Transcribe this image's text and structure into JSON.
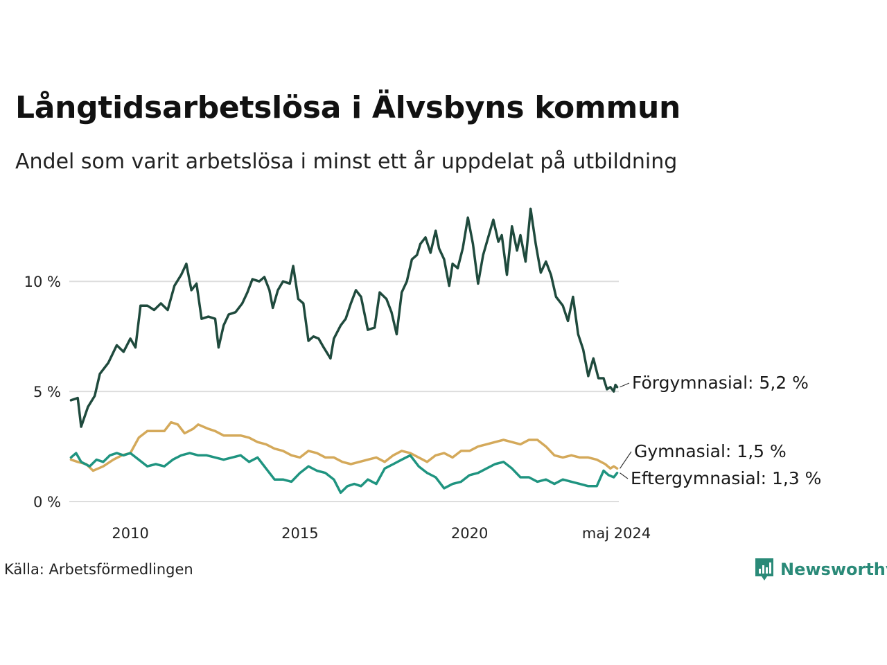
{
  "header": {
    "title": "Långtidsarbetslösa i Älvsbyns kommun",
    "subtitle": "Andel som varit arbetslösa i minst ett år uppdelat på utbildning"
  },
  "footer": {
    "source": "Källa: Arbetsförmedlingen",
    "brand": "Newsworthy"
  },
  "colors": {
    "forgymnasial": "#1f4a3d",
    "gymnasial": "#d4a95a",
    "eftergymnasial": "#1f9480",
    "grid": "#dddddd",
    "brand": "#2a8a78"
  },
  "chart_data": {
    "type": "line",
    "title": "Långtidsarbetslösa i Älvsbyns kommun",
    "subtitle": "Andel som varit arbetslösa i minst ett år uppdelat på utbildning",
    "xlabel": "",
    "ylabel": "",
    "xlim": [
      2008.2,
      2024.4
    ],
    "ylim": [
      0,
      13.5
    ],
    "y_ticks": [
      0,
      5,
      10
    ],
    "y_tick_labels": [
      "0 %",
      "5 %",
      "10 %"
    ],
    "x_ticks": [
      2010,
      2015,
      2020,
      2024.33
    ],
    "x_tick_labels": [
      "2010",
      "2015",
      "2020",
      "maj 2024"
    ],
    "grid": "horizontal",
    "series": [
      {
        "name": "Förgymnasial",
        "label": "Förgymnasial: 5,2 %",
        "color": "#1f4a3d",
        "points": [
          [
            2008.25,
            4.6
          ],
          [
            2008.45,
            4.7
          ],
          [
            2008.55,
            3.4
          ],
          [
            2008.75,
            4.3
          ],
          [
            2008.95,
            4.8
          ],
          [
            2009.1,
            5.8
          ],
          [
            2009.35,
            6.3
          ],
          [
            2009.6,
            7.1
          ],
          [
            2009.8,
            6.8
          ],
          [
            2010.0,
            7.4
          ],
          [
            2010.15,
            7.0
          ],
          [
            2010.3,
            8.9
          ],
          [
            2010.5,
            8.9
          ],
          [
            2010.7,
            8.7
          ],
          [
            2010.9,
            9.0
          ],
          [
            2011.1,
            8.7
          ],
          [
            2011.3,
            9.8
          ],
          [
            2011.5,
            10.3
          ],
          [
            2011.65,
            10.8
          ],
          [
            2011.8,
            9.6
          ],
          [
            2011.95,
            9.9
          ],
          [
            2012.1,
            8.3
          ],
          [
            2012.3,
            8.4
          ],
          [
            2012.5,
            8.3
          ],
          [
            2012.6,
            7.0
          ],
          [
            2012.75,
            8.0
          ],
          [
            2012.9,
            8.5
          ],
          [
            2013.1,
            8.6
          ],
          [
            2013.3,
            9.0
          ],
          [
            2013.45,
            9.5
          ],
          [
            2013.6,
            10.1
          ],
          [
            2013.8,
            10.0
          ],
          [
            2013.95,
            10.2
          ],
          [
            2014.1,
            9.6
          ],
          [
            2014.2,
            8.8
          ],
          [
            2014.35,
            9.6
          ],
          [
            2014.5,
            10.0
          ],
          [
            2014.7,
            9.9
          ],
          [
            2014.8,
            10.7
          ],
          [
            2014.95,
            9.2
          ],
          [
            2015.1,
            9.0
          ],
          [
            2015.25,
            7.3
          ],
          [
            2015.4,
            7.5
          ],
          [
            2015.55,
            7.4
          ],
          [
            2015.7,
            7.0
          ],
          [
            2015.9,
            6.5
          ],
          [
            2016.0,
            7.4
          ],
          [
            2016.2,
            8.0
          ],
          [
            2016.35,
            8.3
          ],
          [
            2016.5,
            9.0
          ],
          [
            2016.65,
            9.6
          ],
          [
            2016.8,
            9.3
          ],
          [
            2017.0,
            7.8
          ],
          [
            2017.2,
            7.9
          ],
          [
            2017.35,
            9.5
          ],
          [
            2017.55,
            9.2
          ],
          [
            2017.7,
            8.6
          ],
          [
            2017.85,
            7.6
          ],
          [
            2018.0,
            9.5
          ],
          [
            2018.15,
            10.0
          ],
          [
            2018.3,
            11.0
          ],
          [
            2018.45,
            11.2
          ],
          [
            2018.55,
            11.7
          ],
          [
            2018.7,
            12.0
          ],
          [
            2018.85,
            11.3
          ],
          [
            2019.0,
            12.3
          ],
          [
            2019.1,
            11.5
          ],
          [
            2019.25,
            11.0
          ],
          [
            2019.4,
            9.8
          ],
          [
            2019.5,
            10.8
          ],
          [
            2019.65,
            10.6
          ],
          [
            2019.8,
            11.5
          ],
          [
            2019.95,
            12.9
          ],
          [
            2020.1,
            11.7
          ],
          [
            2020.25,
            9.9
          ],
          [
            2020.4,
            11.2
          ],
          [
            2020.55,
            12.0
          ],
          [
            2020.7,
            12.8
          ],
          [
            2020.85,
            11.8
          ],
          [
            2020.95,
            12.1
          ],
          [
            2021.1,
            10.3
          ],
          [
            2021.25,
            12.5
          ],
          [
            2021.4,
            11.4
          ],
          [
            2021.5,
            12.1
          ],
          [
            2021.65,
            10.9
          ],
          [
            2021.8,
            13.3
          ],
          [
            2021.95,
            11.7
          ],
          [
            2022.1,
            10.4
          ],
          [
            2022.25,
            10.9
          ],
          [
            2022.4,
            10.3
          ],
          [
            2022.55,
            9.3
          ],
          [
            2022.75,
            8.9
          ],
          [
            2022.9,
            8.2
          ],
          [
            2023.05,
            9.3
          ],
          [
            2023.2,
            7.6
          ],
          [
            2023.35,
            6.9
          ],
          [
            2023.5,
            5.7
          ],
          [
            2023.65,
            6.5
          ],
          [
            2023.8,
            5.6
          ],
          [
            2023.95,
            5.6
          ],
          [
            2024.05,
            5.1
          ],
          [
            2024.15,
            5.2
          ],
          [
            2024.25,
            5.0
          ],
          [
            2024.3,
            5.3
          ],
          [
            2024.35,
            5.2
          ]
        ]
      },
      {
        "name": "Gymnasial",
        "label": "Gymnasial: 1,5 %",
        "color": "#d4a95a",
        "points": [
          [
            2008.25,
            1.9
          ],
          [
            2008.45,
            1.8
          ],
          [
            2008.7,
            1.7
          ],
          [
            2008.9,
            1.4
          ],
          [
            2009.2,
            1.6
          ],
          [
            2009.5,
            1.9
          ],
          [
            2009.75,
            2.1
          ],
          [
            2010.0,
            2.2
          ],
          [
            2010.25,
            2.9
          ],
          [
            2010.5,
            3.2
          ],
          [
            2010.75,
            3.2
          ],
          [
            2011.0,
            3.2
          ],
          [
            2011.2,
            3.6
          ],
          [
            2011.4,
            3.5
          ],
          [
            2011.6,
            3.1
          ],
          [
            2011.85,
            3.3
          ],
          [
            2012.0,
            3.5
          ],
          [
            2012.3,
            3.3
          ],
          [
            2012.5,
            3.2
          ],
          [
            2012.75,
            3.0
          ],
          [
            2013.0,
            3.0
          ],
          [
            2013.25,
            3.0
          ],
          [
            2013.5,
            2.9
          ],
          [
            2013.75,
            2.7
          ],
          [
            2014.0,
            2.6
          ],
          [
            2014.25,
            2.4
          ],
          [
            2014.5,
            2.3
          ],
          [
            2014.75,
            2.1
          ],
          [
            2015.0,
            2.0
          ],
          [
            2015.25,
            2.3
          ],
          [
            2015.5,
            2.2
          ],
          [
            2015.75,
            2.0
          ],
          [
            2016.0,
            2.0
          ],
          [
            2016.25,
            1.8
          ],
          [
            2016.5,
            1.7
          ],
          [
            2016.75,
            1.8
          ],
          [
            2017.0,
            1.9
          ],
          [
            2017.25,
            2.0
          ],
          [
            2017.5,
            1.8
          ],
          [
            2017.75,
            2.1
          ],
          [
            2018.0,
            2.3
          ],
          [
            2018.25,
            2.2
          ],
          [
            2018.5,
            2.0
          ],
          [
            2018.75,
            1.8
          ],
          [
            2019.0,
            2.1
          ],
          [
            2019.25,
            2.2
          ],
          [
            2019.5,
            2.0
          ],
          [
            2019.75,
            2.3
          ],
          [
            2020.0,
            2.3
          ],
          [
            2020.25,
            2.5
          ],
          [
            2020.5,
            2.6
          ],
          [
            2020.75,
            2.7
          ],
          [
            2021.0,
            2.8
          ],
          [
            2021.25,
            2.7
          ],
          [
            2021.5,
            2.6
          ],
          [
            2021.75,
            2.8
          ],
          [
            2022.0,
            2.8
          ],
          [
            2022.25,
            2.5
          ],
          [
            2022.5,
            2.1
          ],
          [
            2022.75,
            2.0
          ],
          [
            2023.0,
            2.1
          ],
          [
            2023.25,
            2.0
          ],
          [
            2023.5,
            2.0
          ],
          [
            2023.75,
            1.9
          ],
          [
            2024.0,
            1.7
          ],
          [
            2024.15,
            1.5
          ],
          [
            2024.25,
            1.6
          ],
          [
            2024.35,
            1.5
          ]
        ]
      },
      {
        "name": "Eftergymnasial",
        "label": "Eftergymnasial: 1,3 %",
        "color": "#1f9480",
        "points": [
          [
            2008.25,
            2.0
          ],
          [
            2008.4,
            2.2
          ],
          [
            2008.55,
            1.8
          ],
          [
            2008.8,
            1.6
          ],
          [
            2009.0,
            1.9
          ],
          [
            2009.2,
            1.8
          ],
          [
            2009.4,
            2.1
          ],
          [
            2009.6,
            2.2
          ],
          [
            2009.8,
            2.1
          ],
          [
            2010.0,
            2.2
          ],
          [
            2010.25,
            1.9
          ],
          [
            2010.5,
            1.6
          ],
          [
            2010.75,
            1.7
          ],
          [
            2011.0,
            1.6
          ],
          [
            2011.25,
            1.9
          ],
          [
            2011.5,
            2.1
          ],
          [
            2011.75,
            2.2
          ],
          [
            2012.0,
            2.1
          ],
          [
            2012.25,
            2.1
          ],
          [
            2012.5,
            2.0
          ],
          [
            2012.75,
            1.9
          ],
          [
            2013.0,
            2.0
          ],
          [
            2013.25,
            2.1
          ],
          [
            2013.5,
            1.8
          ],
          [
            2013.75,
            2.0
          ],
          [
            2014.0,
            1.5
          ],
          [
            2014.25,
            1.0
          ],
          [
            2014.5,
            1.0
          ],
          [
            2014.75,
            0.9
          ],
          [
            2015.0,
            1.3
          ],
          [
            2015.25,
            1.6
          ],
          [
            2015.5,
            1.4
          ],
          [
            2015.75,
            1.3
          ],
          [
            2016.0,
            1.0
          ],
          [
            2016.2,
            0.4
          ],
          [
            2016.4,
            0.7
          ],
          [
            2016.6,
            0.8
          ],
          [
            2016.8,
            0.7
          ],
          [
            2017.0,
            1.0
          ],
          [
            2017.25,
            0.8
          ],
          [
            2017.5,
            1.5
          ],
          [
            2017.75,
            1.7
          ],
          [
            2018.0,
            1.9
          ],
          [
            2018.25,
            2.1
          ],
          [
            2018.5,
            1.6
          ],
          [
            2018.75,
            1.3
          ],
          [
            2019.0,
            1.1
          ],
          [
            2019.25,
            0.6
          ],
          [
            2019.5,
            0.8
          ],
          [
            2019.75,
            0.9
          ],
          [
            2020.0,
            1.2
          ],
          [
            2020.25,
            1.3
          ],
          [
            2020.5,
            1.5
          ],
          [
            2020.75,
            1.7
          ],
          [
            2021.0,
            1.8
          ],
          [
            2021.25,
            1.5
          ],
          [
            2021.5,
            1.1
          ],
          [
            2021.75,
            1.1
          ],
          [
            2022.0,
            0.9
          ],
          [
            2022.25,
            1.0
          ],
          [
            2022.5,
            0.8
          ],
          [
            2022.75,
            1.0
          ],
          [
            2023.0,
            0.9
          ],
          [
            2023.25,
            0.8
          ],
          [
            2023.5,
            0.7
          ],
          [
            2023.75,
            0.7
          ],
          [
            2023.95,
            1.4
          ],
          [
            2024.1,
            1.2
          ],
          [
            2024.25,
            1.1
          ],
          [
            2024.35,
            1.3
          ]
        ]
      }
    ]
  }
}
